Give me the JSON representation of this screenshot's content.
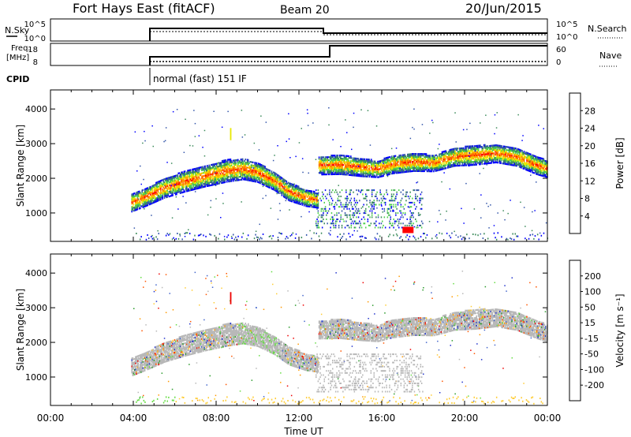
{
  "header": {
    "title": "Fort Hays East (fitACF)",
    "beam": "Beam 20",
    "date": "20/Jun/2015"
  },
  "summary": {
    "nsky_label": "N.Sky",
    "nsky_ticks": [
      "10^5",
      "10^0"
    ],
    "nsearch_label": "N.Search",
    "nsearch_ticks": [
      "10^5",
      "10^0"
    ],
    "freq_label_1": "Freq.",
    "freq_label_2": "[MHz]",
    "freq_ticks": [
      "18",
      "8"
    ],
    "nave_label": "Nave",
    "nave_ticks": [
      "60",
      "0"
    ],
    "cpid_label": "CPID",
    "cpid_text": "normal (fast) 151 IF"
  },
  "colors": {
    "power_scale": [
      "#0000ff",
      "#3355aa",
      "#3b8a5a",
      "#4bd04b",
      "#e8e800",
      "#ffaa00",
      "#ff6600",
      "#ff0000"
    ],
    "velocity_scale": [
      "#2233cc",
      "#4466cc",
      "#2a9a2a",
      "#66dd44",
      "#b8b8b8",
      "#ffcc33",
      "#ff9900",
      "#ff5500",
      "#ee0000"
    ]
  },
  "chart_data": [
    {
      "type": "heatmap",
      "name": "power",
      "ylabel": "Slant Range [km]",
      "xlabel": "Time UT",
      "x_ticks": [
        "00:00",
        "04:00",
        "08:00",
        "12:00",
        "16:00",
        "20:00",
        "00:00"
      ],
      "xlim_hours": [
        0,
        24
      ],
      "y_ticks": [
        1000,
        2000,
        3000,
        4000
      ],
      "ylim": [
        180,
        4550
      ],
      "colorbar_label": "Power [dB]",
      "colorbar_ticks": [
        "28",
        "24",
        "20",
        "16",
        "12",
        "8",
        "4"
      ],
      "colorbar_range": [
        0,
        30
      ],
      "echo_band": [
        [
          3.9,
          1280,
          260
        ],
        [
          4.5,
          1420,
          260
        ],
        [
          5.5,
          1700,
          280
        ],
        [
          6.5,
          1900,
          300
        ],
        [
          7.5,
          2050,
          300
        ],
        [
          8.5,
          2200,
          320
        ],
        [
          9.3,
          2250,
          300
        ],
        [
          10.0,
          2150,
          280
        ],
        [
          10.8,
          1900,
          260
        ],
        [
          11.5,
          1600,
          260
        ],
        [
          12.3,
          1420,
          240
        ],
        [
          12.9,
          1350,
          220
        ],
        [
          13.0,
          2350,
          260
        ],
        [
          14.0,
          2380,
          280
        ],
        [
          15.0,
          2300,
          260
        ],
        [
          15.8,
          2250,
          240
        ],
        [
          16.5,
          2380,
          260
        ],
        [
          17.5,
          2450,
          260
        ],
        [
          18.5,
          2420,
          240
        ],
        [
          19.5,
          2600,
          260
        ],
        [
          20.5,
          2650,
          280
        ],
        [
          21.5,
          2700,
          260
        ],
        [
          22.5,
          2600,
          260
        ],
        [
          23.5,
          2350,
          260
        ],
        [
          24.0,
          2250,
          240
        ]
      ],
      "notes": [
        "spike ~08:40 at 3100-3450 km"
      ]
    },
    {
      "type": "heatmap",
      "name": "velocity",
      "ylabel": "Slant Range [km]",
      "xlabel": "Time UT",
      "x_ticks": [
        "00:00",
        "04:00",
        "08:00",
        "12:00",
        "16:00",
        "20:00",
        "00:00"
      ],
      "xlim_hours": [
        0,
        24
      ],
      "y_ticks": [
        1000,
        2000,
        3000,
        4000
      ],
      "ylim": [
        180,
        4550
      ],
      "colorbar_label": "Velocity [m s⁻¹]",
      "colorbar_ticks": [
        "200",
        "100",
        "50",
        "15",
        "-15",
        "-50",
        "-100",
        "-200"
      ],
      "colorbar_range": [
        -250,
        250
      ]
    }
  ],
  "axis": {
    "xlabel": "Time UT",
    "x_ticks": [
      "00:00",
      "04:00",
      "08:00",
      "12:00",
      "16:00",
      "20:00",
      "00:00"
    ]
  }
}
